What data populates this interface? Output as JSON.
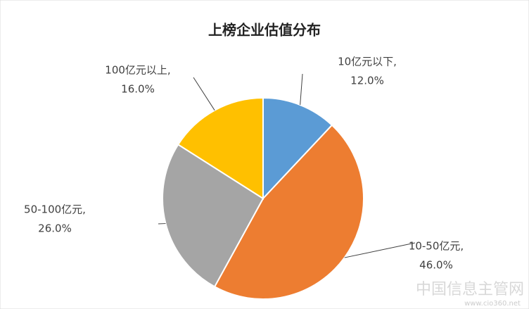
{
  "chart_data": {
    "type": "pie",
    "title": "上榜企业估值分布",
    "categories": [
      "10亿元以下,",
      "10-50亿元,",
      "50-100亿元,",
      "100亿元以上,"
    ],
    "values": [
      12,
      46,
      26,
      16
    ],
    "value_labels": [
      "12.0%",
      "46.0%",
      "26.0%",
      "16.0%"
    ],
    "colors": [
      "#5b9bd5",
      "#ed7d31",
      "#a5a5a5",
      "#ffc000"
    ],
    "watermark": "中国信息主管网",
    "watermark_url": "www.cio360.net"
  }
}
